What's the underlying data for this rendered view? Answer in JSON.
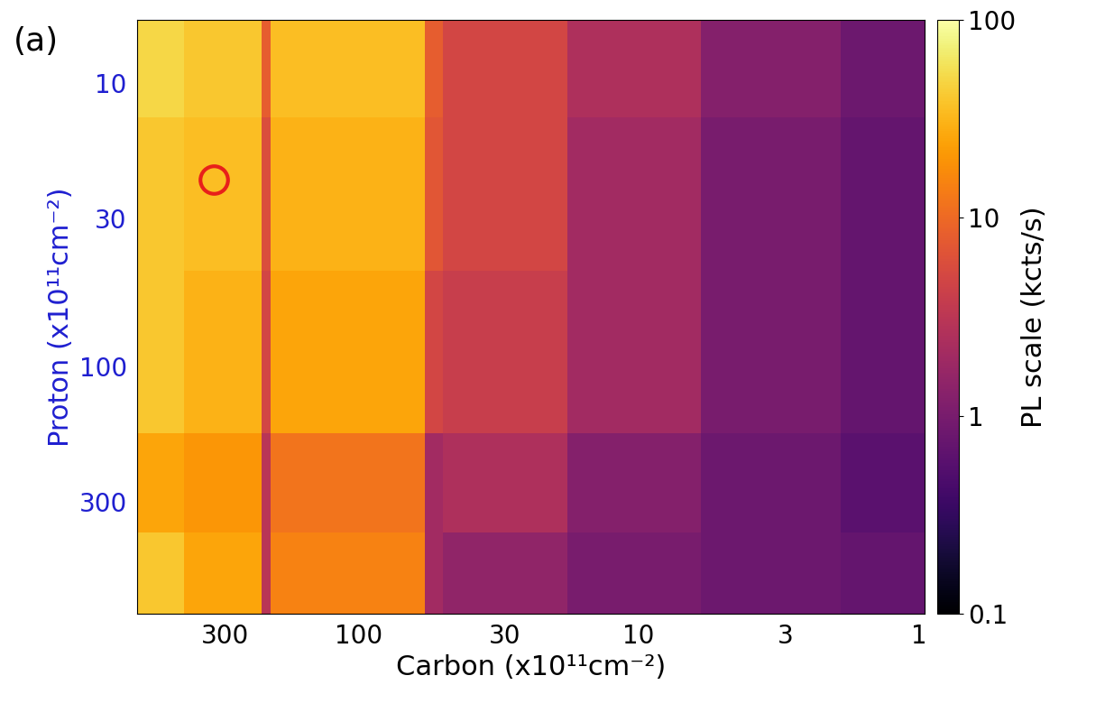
{
  "chart_data": {
    "type": "heatmap",
    "annotation": "(a)",
    "x_label": "Carbon (x10¹¹cm⁻²)",
    "y_label": "Proton (x10¹¹cm⁻²)",
    "log": true,
    "xlim": [
      620,
      0.95
    ],
    "ylim": [
      745,
      6
    ],
    "xticks": [
      300,
      100,
      30,
      10,
      3,
      1
    ],
    "yticks": [
      10,
      30,
      100,
      300
    ],
    "x_edges": [
      620,
      420,
      223,
      207,
      58,
      50,
      18,
      6,
      1.9,
      0.95
    ],
    "y_edges": [
      6,
      13.2,
      46,
      172,
      386,
      745
    ],
    "cells": [
      [
        50,
        40,
        8,
        35,
        8,
        5,
        2.5,
        1.2,
        0.8
      ],
      [
        40,
        35,
        6,
        30,
        7,
        5,
        2,
        1,
        0.7
      ],
      [
        40,
        30,
        5,
        25,
        5,
        4,
        2,
        1,
        0.7
      ],
      [
        25,
        20,
        3,
        12,
        2,
        2.5,
        1.2,
        0.8,
        0.6
      ],
      [
        40,
        25,
        3,
        15,
        2,
        1.5,
        1,
        0.8,
        0.7
      ]
    ],
    "colorbar_label": "PL scale (kcts/s)",
    "colorbar_range": [
      0.1,
      100
    ],
    "colorbar_ticks": [
      0.1,
      1,
      10,
      100
    ],
    "points": [
      {
        "x": 330,
        "y": 22,
        "color": "#e8201a",
        "marker": "o"
      }
    ]
  }
}
